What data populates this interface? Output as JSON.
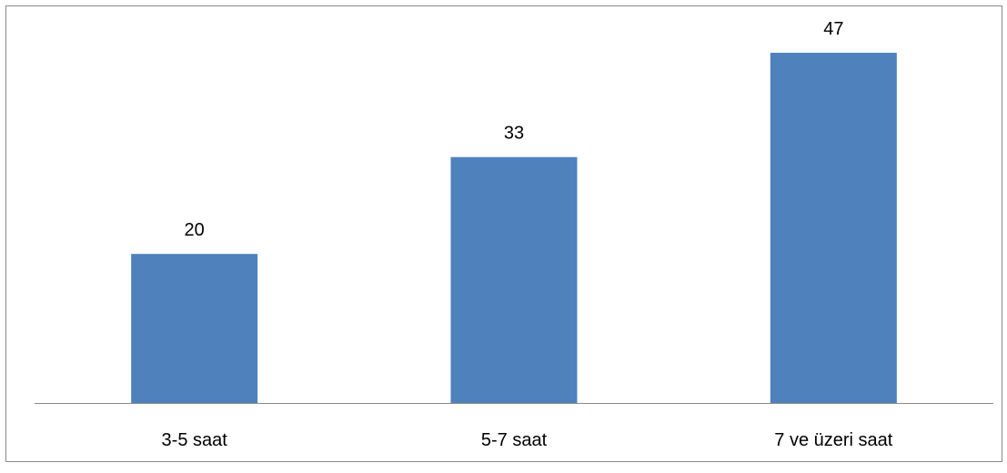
{
  "chart_data": {
    "type": "bar",
    "categories": [
      "3-5 saat",
      "5-7 saat",
      "7 ve üzeri saat"
    ],
    "values": [
      20,
      33,
      47
    ],
    "data_labels": [
      "20",
      "33",
      "47"
    ],
    "title": "",
    "xlabel": "",
    "ylabel": "",
    "ylim": [
      0,
      50
    ],
    "grid": false,
    "legend": "none",
    "bar_color": "#4F81BD",
    "axis_color": "#898989"
  }
}
